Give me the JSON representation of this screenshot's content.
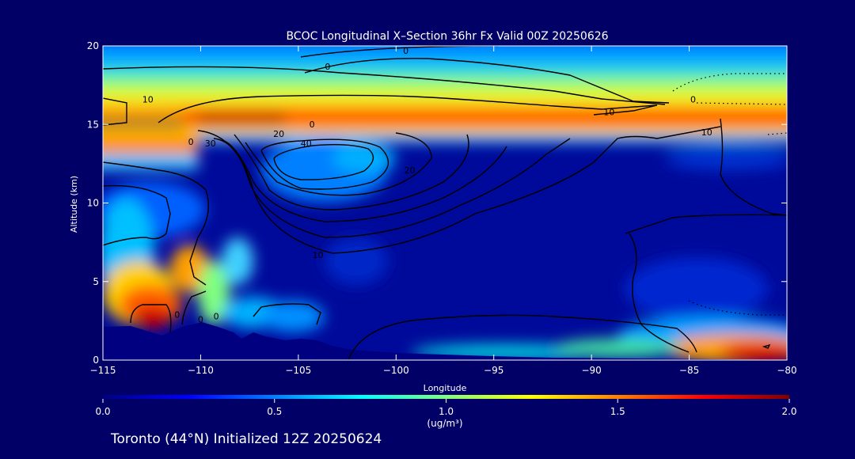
{
  "chart_data": {
    "type": "heatmap",
    "title": "BCOC Longitudinal X–Section 36hr  Fx Valid 00Z 20250626",
    "subtitle": "Toronto (44°N) Initialized 12Z 20250624",
    "xlabel": "Longitude",
    "ylabel": "Altitude (km)",
    "xlim": [
      -115,
      -80
    ],
    "ylim": [
      0,
      20
    ],
    "x_ticks": [
      -115,
      -110,
      -105,
      -100,
      -95,
      -90,
      -85,
      -80
    ],
    "x_tick_labels": [
      "−115",
      "−110",
      "−105",
      "−100",
      "−95",
      "−90",
      "−85",
      "−80"
    ],
    "y_ticks": [
      0,
      5,
      10,
      15,
      20
    ],
    "y_tick_labels": [
      "0",
      "5",
      "10",
      "15",
      "20"
    ],
    "colorbar": {
      "min": 0.0,
      "max": 2.0,
      "ticks": [
        0.0,
        0.5,
        1.0,
        1.5,
        2.0
      ],
      "tick_labels": [
        "0.0",
        "0.5",
        "1.0",
        "1.5",
        "2.0"
      ],
      "units": "(ug/m³)",
      "colors": [
        "#000080",
        "#0000ff",
        "#0080ff",
        "#00ffff",
        "#80ff80",
        "#ffff00",
        "#ff8000",
        "#ff0000",
        "#800000"
      ]
    },
    "contour_labels": [
      {
        "text": "0",
        "lon": -110.5,
        "alt": 13.7
      },
      {
        "text": "0",
        "lon": -109.2,
        "alt": 2.6
      },
      {
        "text": "0",
        "lon": -111.2,
        "alt": 2.7
      },
      {
        "text": "0",
        "lon": -110.0,
        "alt": 2.4
      },
      {
        "text": "0",
        "lon": -99.5,
        "alt": 19.5
      },
      {
        "text": "0",
        "lon": -103.5,
        "alt": 18.5
      },
      {
        "text": "0",
        "lon": -84.8,
        "alt": 16.4
      },
      {
        "text": "0",
        "lon": -104.3,
        "alt": 14.8
      },
      {
        "text": "10",
        "lon": -112.7,
        "alt": 16.4
      },
      {
        "text": "10",
        "lon": -89.1,
        "alt": 15.6
      },
      {
        "text": "10",
        "lon": -84.1,
        "alt": 14.3
      },
      {
        "text": "10",
        "lon": -104.0,
        "alt": 6.5
      },
      {
        "text": "20",
        "lon": -106.0,
        "alt": 14.2
      },
      {
        "text": "20",
        "lon": -99.3,
        "alt": 11.9
      },
      {
        "text": "30",
        "lon": -109.5,
        "alt": 13.6
      },
      {
        "text": "40",
        "lon": -104.6,
        "alt": 13.6
      }
    ]
  }
}
